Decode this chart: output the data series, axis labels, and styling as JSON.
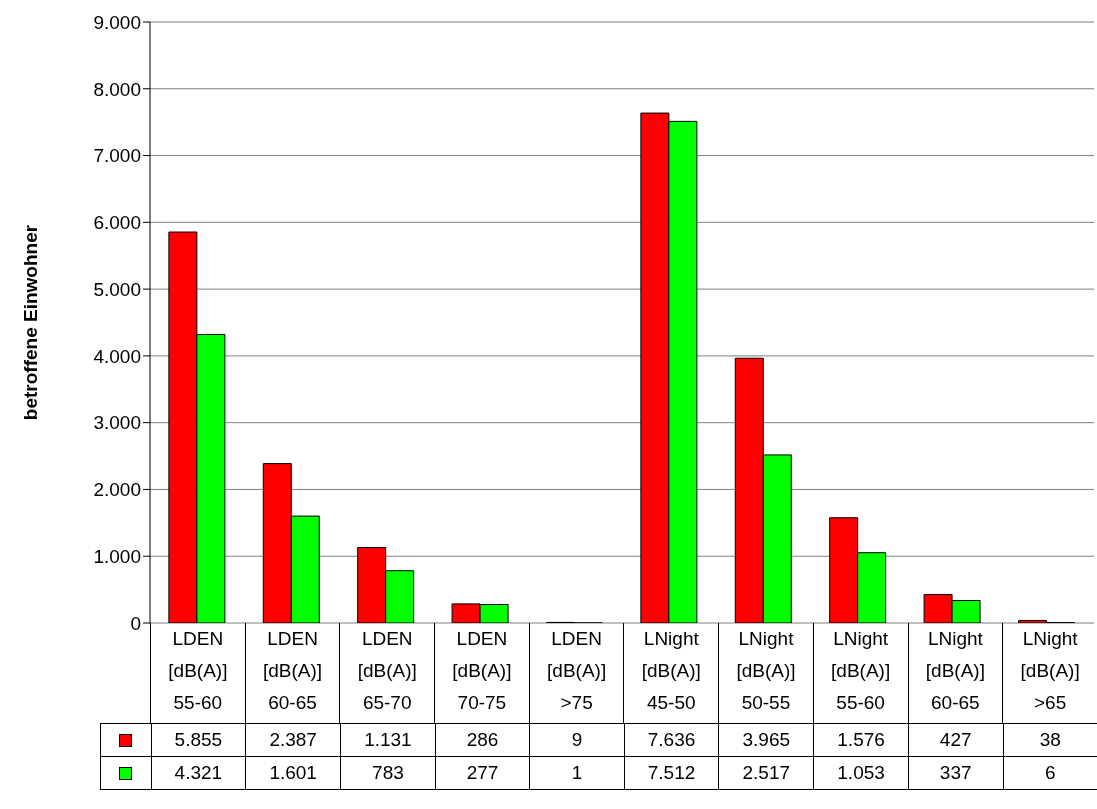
{
  "chart_data": {
    "type": "bar",
    "ylabel": "betroffene Einwohner",
    "categories": [
      "LDEN [dB(A)] 55-60",
      "LDEN [dB(A)] 60-65",
      "LDEN [dB(A)] 65-70",
      "LDEN [dB(A)] 70-75",
      "LDEN [dB(A)] >75",
      "LNight [dB(A)] 45-50",
      "LNight [dB(A)] 50-55",
      "LNight [dB(A)] 55-60",
      "LNight [dB(A)] 60-65",
      "LNight [dB(A)] >65"
    ],
    "series": [
      {
        "color": "#ff0000",
        "values": [
          5855,
          2387,
          1131,
          286,
          9,
          7636,
          3965,
          1576,
          427,
          38
        ],
        "value_labels": [
          "5.855",
          "2.387",
          "1.131",
          "286",
          "9",
          "7.636",
          "3.965",
          "1.576",
          "427",
          "38"
        ]
      },
      {
        "color": "#00ff00",
        "values": [
          4321,
          1601,
          783,
          277,
          1,
          7512,
          2517,
          1053,
          337,
          6
        ],
        "value_labels": [
          "4.321",
          "1.601",
          "783",
          "277",
          "1",
          "7.512",
          "2.517",
          "1.053",
          "337",
          "6"
        ]
      }
    ],
    "ylim": [
      0,
      9000
    ],
    "yticks": [
      {
        "value": 0,
        "label": "0"
      },
      {
        "value": 1000,
        "label": "1.000"
      },
      {
        "value": 2000,
        "label": "2.000"
      },
      {
        "value": 3000,
        "label": "3.000"
      },
      {
        "value": 4000,
        "label": "4.000"
      },
      {
        "value": 5000,
        "label": "5.000"
      },
      {
        "value": 6000,
        "label": "6.000"
      },
      {
        "value": 7000,
        "label": "7.000"
      },
      {
        "value": 8000,
        "label": "8.000"
      },
      {
        "value": 9000,
        "label": "9.000"
      }
    ],
    "grid": "y"
  }
}
